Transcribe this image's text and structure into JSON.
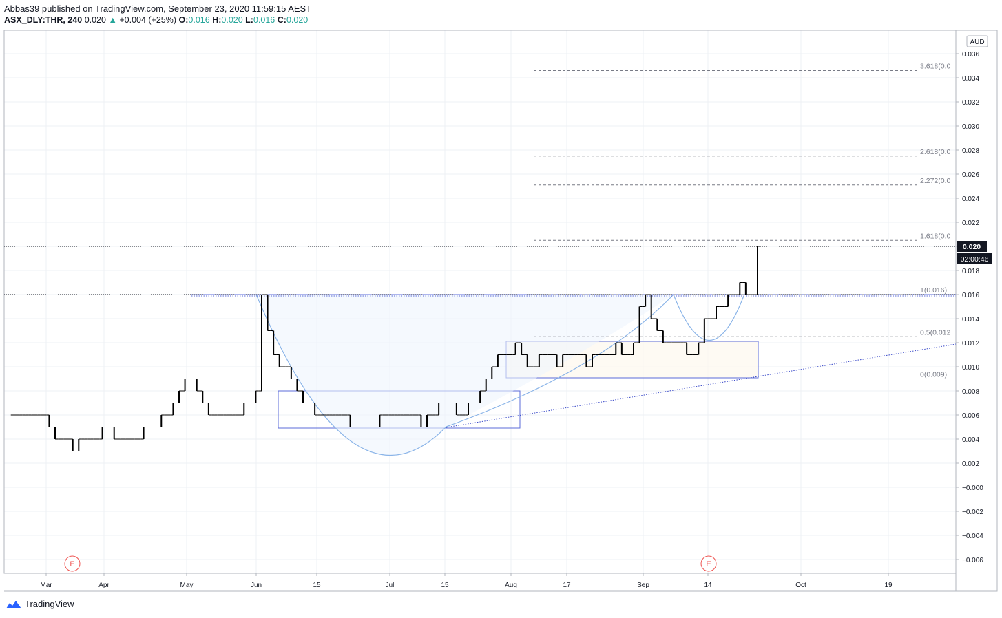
{
  "header": {
    "published_line": "Abbas39 published on TradingView.com, September 23, 2020 11:59:15 AEST",
    "symbol": "ASX_DLY:THR, 240",
    "last": "0.020",
    "change": "+0.004 (+25%)",
    "o_label": "O:",
    "o_value": "0.016",
    "h_label": "H:",
    "h_value": "0.020",
    "l_label": "L:",
    "l_value": "0.016",
    "c_label": "C:",
    "c_value": "0.020"
  },
  "brand": {
    "name": "TradingView"
  },
  "colors": {
    "up": "#26a69a",
    "bar": "#000000",
    "drawing": "#5b6bd8",
    "arc": "#8ab4e8",
    "fib": "#787b86"
  },
  "chart_data": {
    "type": "ohlc",
    "currency": "AUD",
    "last_price": "0.020",
    "countdown": "02:00:46",
    "ylim": [
      -0.007,
      0.038
    ],
    "y_ticks": [
      "0.036",
      "0.034",
      "0.032",
      "0.030",
      "0.028",
      "0.026",
      "0.024",
      "0.022",
      "0.020",
      "0.018",
      "0.016",
      "0.014",
      "0.012",
      "0.010",
      "0.008",
      "0.006",
      "0.004",
      "0.002",
      "−0.000",
      "−0.002",
      "−0.004",
      "−0.006"
    ],
    "x_ticks": [
      "Mar",
      "Apr",
      "May",
      "Jun",
      "15",
      "Jul",
      "15",
      "Aug",
      "17",
      "Sep",
      "14",
      "Oct",
      "19"
    ],
    "earnings_markers": [
      "E",
      "E"
    ],
    "fib_levels": [
      {
        "label": "3.618(0.0",
        "value": 0.0346
      },
      {
        "label": "2.618(0.0",
        "value": 0.0275
      },
      {
        "label": "2.272(0.0",
        "value": 0.0251
      },
      {
        "label": "1.618(0.0",
        "value": 0.0205
      },
      {
        "label": "1(0.016)",
        "value": 0.016
      },
      {
        "label": "0.5(0.012",
        "value": 0.0125
      },
      {
        "label": "0(0.009)",
        "value": 0.009
      }
    ],
    "price_series": [
      0.006,
      0.006,
      0.006,
      0.006,
      0.006,
      0.006,
      0.005,
      0.004,
      0.004,
      0.004,
      0.003,
      0.004,
      0.004,
      0.004,
      0.004,
      0.005,
      0.005,
      0.004,
      0.004,
      0.004,
      0.004,
      0.004,
      0.005,
      0.005,
      0.005,
      0.006,
      0.006,
      0.007,
      0.008,
      0.009,
      0.009,
      0.008,
      0.007,
      0.006,
      0.006,
      0.006,
      0.006,
      0.006,
      0.006,
      0.007,
      0.007,
      0.008,
      0.016,
      0.013,
      0.011,
      0.01,
      0.01,
      0.009,
      0.008,
      0.007,
      0.007,
      0.006,
      0.006,
      0.006,
      0.006,
      0.006,
      0.006,
      0.005,
      0.005,
      0.005,
      0.005,
      0.005,
      0.006,
      0.006,
      0.006,
      0.006,
      0.006,
      0.006,
      0.006,
      0.005,
      0.006,
      0.006,
      0.007,
      0.007,
      0.007,
      0.006,
      0.006,
      0.007,
      0.007,
      0.008,
      0.009,
      0.01,
      0.011,
      0.011,
      0.011,
      0.012,
      0.011,
      0.01,
      0.01,
      0.011,
      0.011,
      0.011,
      0.01,
      0.011,
      0.011,
      0.011,
      0.011,
      0.01,
      0.011,
      0.011,
      0.011,
      0.011,
      0.012,
      0.011,
      0.011,
      0.012,
      0.015,
      0.016,
      0.014,
      0.013,
      0.012,
      0.012,
      0.012,
      0.012,
      0.011,
      0.011,
      0.012,
      0.014,
      0.014,
      0.015,
      0.015,
      0.016,
      0.016,
      0.017,
      0.016,
      0.016,
      0.02
    ]
  }
}
